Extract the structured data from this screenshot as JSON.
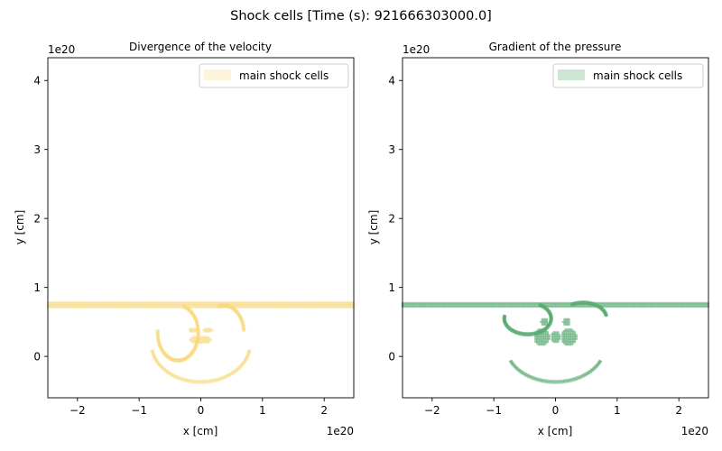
{
  "figure": {
    "suptitle": "Shock cells [Time (s): 921666303000.0]"
  },
  "chart_data": [
    {
      "type": "scatter",
      "title": "Divergence of the velocity",
      "xlabel": "x [cm]",
      "ylabel": "y [cm]",
      "x_offset_text": "1e20",
      "y_offset_text": "1e20",
      "xlim": [
        -2.48,
        2.48
      ],
      "ylim": [
        -0.6,
        4.33
      ],
      "xticks": [
        -2,
        -1,
        0,
        1,
        2
      ],
      "yticks": [
        0,
        1,
        2,
        3,
        4
      ],
      "grid": false,
      "legend": {
        "placement": "top-right",
        "entries": [
          "main shock cells"
        ]
      },
      "series": [
        {
          "name": "main shock cells",
          "color": "#f7d87e",
          "regions": [
            {
              "shape": "band",
              "x": [
                -2.48,
                2.48
              ],
              "y": [
                0.71,
                0.79
              ]
            },
            {
              "shape": "arc",
              "cx": -0.37,
              "cy": 0.34,
              "rx": 0.33,
              "ry": 0.4,
              "from_deg": 175,
              "to_deg": 75
            },
            {
              "shape": "arc",
              "cx": 0.37,
              "cy": 0.34,
              "rx": 0.33,
              "ry": 0.4,
              "from_deg": 5,
              "to_deg": 105
            },
            {
              "shape": "arc",
              "cx": 0.0,
              "cy": 0.18,
              "rx": 0.8,
              "ry": 0.55,
              "from_deg": 190,
              "to_deg": 350
            },
            {
              "shape": "blob",
              "cx": 0.0,
              "cy": 0.24,
              "rx": 0.18,
              "ry": 0.06
            },
            {
              "shape": "blob",
              "cx": -0.12,
              "cy": 0.38,
              "rx": 0.08,
              "ry": 0.04
            },
            {
              "shape": "blob",
              "cx": 0.12,
              "cy": 0.38,
              "rx": 0.08,
              "ry": 0.04
            }
          ]
        }
      ]
    },
    {
      "type": "scatter",
      "title": "Gradient of the pressure",
      "xlabel": "x [cm]",
      "ylabel": "y [cm]",
      "x_offset_text": "1e20",
      "y_offset_text": "1e20",
      "xlim": [
        -2.48,
        2.48
      ],
      "ylim": [
        -0.6,
        4.33
      ],
      "xticks": [
        -2,
        -1,
        0,
        1,
        2
      ],
      "yticks": [
        0,
        1,
        2,
        3,
        4
      ],
      "grid": false,
      "legend": {
        "placement": "top-right",
        "entries": [
          "main shock cells"
        ]
      },
      "series": [
        {
          "name": "main shock cells",
          "color": "#5aab72",
          "regions": [
            {
              "shape": "band",
              "x": [
                -2.48,
                2.48
              ],
              "y": [
                0.72,
                0.79
              ]
            },
            {
              "shape": "arc",
              "cx": -0.45,
              "cy": 0.55,
              "rx": 0.38,
              "ry": 0.23,
              "from_deg": 170,
              "to_deg": 60
            },
            {
              "shape": "arc",
              "cx": 0.45,
              "cy": 0.55,
              "rx": 0.38,
              "ry": 0.23,
              "from_deg": 10,
              "to_deg": 120
            },
            {
              "shape": "arc",
              "cx": 0.0,
              "cy": 0.15,
              "rx": 0.8,
              "ry": 0.52,
              "from_deg": 205,
              "to_deg": 335
            },
            {
              "shape": "blob",
              "cx": -0.22,
              "cy": 0.28,
              "rx": 0.13,
              "ry": 0.13
            },
            {
              "shape": "blob",
              "cx": 0.22,
              "cy": 0.28,
              "rx": 0.13,
              "ry": 0.13
            },
            {
              "shape": "blob",
              "cx": 0.0,
              "cy": 0.28,
              "rx": 0.08,
              "ry": 0.09
            },
            {
              "shape": "blob",
              "cx": -0.18,
              "cy": 0.5,
              "rx": 0.06,
              "ry": 0.06
            },
            {
              "shape": "blob",
              "cx": 0.18,
              "cy": 0.5,
              "rx": 0.06,
              "ry": 0.06
            }
          ]
        }
      ]
    }
  ]
}
